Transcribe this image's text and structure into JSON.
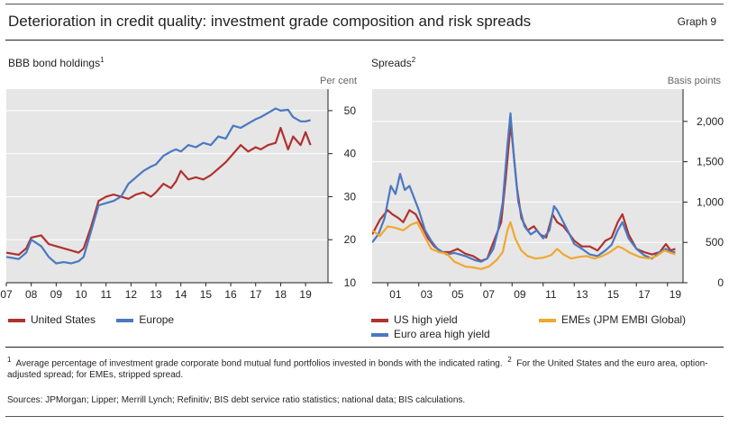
{
  "header": {
    "title": "Deterioration in credit quality: investment grade composition and risk spreads",
    "graph_label": "Graph 9"
  },
  "left_panel": {
    "title": "BBB bond holdings",
    "title_sup": "1",
    "unit": "Per cent",
    "legend": [
      {
        "label": "United States",
        "color": "#b0312e"
      },
      {
        "label": "Europe",
        "color": "#4a78c2"
      }
    ]
  },
  "right_panel": {
    "title": "Spreads",
    "title_sup": "2",
    "unit": "Basis points",
    "legend": [
      {
        "label": "US high yield",
        "color": "#b0312e"
      },
      {
        "label": "EMEs (JPM EMBI Global)",
        "color": "#f0a830"
      },
      {
        "label": "Euro area high yield",
        "color": "#4a78c2"
      }
    ]
  },
  "footnote": {
    "n1": "1",
    "text1": "Average percentage of investment grade corporate bond mutual fund portfolios invested in bonds with the indicated rating.",
    "n2": "2",
    "text2": "For the United States and the euro area, option-adjusted spread; for EMEs, stripped spread.",
    "sources": "Sources: JPMorgan; Lipper; Merrill Lynch; Refinitiv; BIS debt service ratio statistics; national data; BIS calculations."
  },
  "chart_data": [
    {
      "type": "line",
      "title": "BBB bond holdings",
      "ylabel": "Per cent",
      "ylim": [
        10,
        55
      ],
      "yticks": [
        10,
        20,
        30,
        40,
        50
      ],
      "xlim": [
        2007.0,
        2019.9
      ],
      "xticks": [
        "07",
        "08",
        "09",
        "10",
        "11",
        "12",
        "13",
        "14",
        "15",
        "16",
        "17",
        "18",
        "19"
      ],
      "grid": true,
      "legend_position": "bottom",
      "series": [
        {
          "name": "United States",
          "color": "#b0312e",
          "x": [
            2007.0,
            2007.5,
            2007.8,
            2008.0,
            2008.4,
            2008.7,
            2009.0,
            2009.3,
            2009.6,
            2009.9,
            2010.1,
            2010.4,
            2010.7,
            2011.0,
            2011.3,
            2011.6,
            2011.9,
            2012.2,
            2012.5,
            2012.8,
            2013.0,
            2013.3,
            2013.6,
            2013.8,
            2014.0,
            2014.3,
            2014.6,
            2014.9,
            2015.2,
            2015.5,
            2015.8,
            2016.1,
            2016.4,
            2016.7,
            2017.0,
            2017.2,
            2017.5,
            2017.8,
            2018.0,
            2018.3,
            2018.5,
            2018.8,
            2019.0,
            2019.2
          ],
          "y": [
            17,
            16.5,
            18,
            20.5,
            21,
            19,
            18.5,
            18,
            17.5,
            17,
            18,
            23,
            29,
            30,
            30.5,
            30,
            29.5,
            30.5,
            31,
            30,
            31,
            33,
            32,
            33.5,
            36,
            34,
            34.5,
            34,
            35,
            36.5,
            38,
            40,
            42,
            40.5,
            41.5,
            41,
            42,
            42.5,
            46,
            41,
            44,
            42,
            45,
            42
          ]
        },
        {
          "name": "Europe",
          "color": "#4a78c2",
          "x": [
            2007.0,
            2007.5,
            2007.8,
            2008.0,
            2008.4,
            2008.7,
            2009.0,
            2009.3,
            2009.6,
            2009.9,
            2010.1,
            2010.4,
            2010.7,
            2011.0,
            2011.3,
            2011.6,
            2011.9,
            2012.2,
            2012.5,
            2012.8,
            2013.0,
            2013.3,
            2013.6,
            2013.8,
            2014.0,
            2014.3,
            2014.6,
            2014.9,
            2015.2,
            2015.5,
            2015.8,
            2016.1,
            2016.4,
            2016.7,
            2017.0,
            2017.2,
            2017.5,
            2017.8,
            2018.0,
            2018.3,
            2018.5,
            2018.8,
            2019.0,
            2019.2
          ],
          "y": [
            16,
            15.5,
            17,
            20,
            18.5,
            16,
            14.5,
            14.8,
            14.5,
            15,
            16,
            22,
            28,
            28.5,
            29,
            30,
            33,
            34.5,
            36,
            37,
            37.5,
            39.5,
            40.5,
            41,
            40.5,
            42,
            41.5,
            42.5,
            42,
            44,
            43.5,
            46.5,
            46,
            47,
            48,
            48.5,
            49.5,
            50.5,
            50,
            50.2,
            48.5,
            47.5,
            47.5,
            47.8
          ]
        }
      ]
    },
    {
      "type": "line",
      "title": "Spreads",
      "ylabel": "Basis points",
      "ylim": [
        0,
        2400
      ],
      "yticks": [
        0,
        500,
        1000,
        1500,
        2000
      ],
      "xlim": [
        2000.0,
        2020.0
      ],
      "xticks": [
        "01",
        "03",
        "05",
        "07",
        "09",
        "11",
        "13",
        "15",
        "17",
        "19"
      ],
      "grid": true,
      "legend_position": "bottom",
      "series": [
        {
          "name": "US high yield",
          "color": "#b0312e",
          "x": [
            2000.0,
            2000.5,
            2001.0,
            2001.3,
            2001.7,
            2002.0,
            2002.4,
            2002.8,
            2003.2,
            2003.6,
            2004.0,
            2004.5,
            2005.0,
            2005.5,
            2006.0,
            2006.5,
            2007.0,
            2007.4,
            2007.7,
            2008.0,
            2008.3,
            2008.6,
            2008.9,
            2009.0,
            2009.3,
            2009.6,
            2010.0,
            2010.4,
            2010.8,
            2011.2,
            2011.6,
            2011.9,
            2012.3,
            2012.7,
            2013.0,
            2013.5,
            2014.0,
            2014.5,
            2015.0,
            2015.4,
            2015.8,
            2016.1,
            2016.5,
            2017.0,
            2017.5,
            2018.0,
            2018.5,
            2018.9,
            2019.2,
            2019.5
          ],
          "y": [
            600,
            780,
            900,
            850,
            800,
            750,
            900,
            850,
            700,
            550,
            450,
            380,
            380,
            420,
            360,
            330,
            270,
            300,
            450,
            600,
            750,
            1300,
            1950,
            1800,
            1200,
            800,
            650,
            700,
            600,
            560,
            850,
            750,
            700,
            600,
            520,
            450,
            450,
            400,
            520,
            560,
            750,
            850,
            600,
            420,
            380,
            350,
            380,
            480,
            400,
            420
          ]
        },
        {
          "name": "Euro area high yield",
          "color": "#4a78c2",
          "x": [
            2000.0,
            2000.4,
            2000.8,
            2001.2,
            2001.5,
            2001.8,
            2002.1,
            2002.4,
            2002.7,
            2003.0,
            2003.4,
            2003.8,
            2004.2,
            2004.8,
            2005.3,
            2006.0,
            2006.6,
            2007.0,
            2007.4,
            2007.8,
            2008.1,
            2008.4,
            2008.7,
            2008.9,
            2009.1,
            2009.4,
            2009.8,
            2010.2,
            2010.6,
            2011.0,
            2011.4,
            2011.7,
            2011.9,
            2012.3,
            2012.7,
            2013.0,
            2013.5,
            2014.0,
            2014.5,
            2015.0,
            2015.4,
            2015.8,
            2016.1,
            2016.5,
            2017.0,
            2017.5,
            2018.0,
            2018.5,
            2018.9,
            2019.2,
            2019.5
          ],
          "y": [
            500,
            600,
            800,
            1200,
            1100,
            1350,
            1150,
            1200,
            1050,
            900,
            650,
            520,
            420,
            350,
            370,
            330,
            280,
            260,
            300,
            420,
            650,
            1000,
            1700,
            2100,
            1600,
            1000,
            700,
            600,
            650,
            550,
            650,
            950,
            900,
            750,
            600,
            480,
            420,
            350,
            330,
            400,
            470,
            650,
            750,
            550,
            420,
            340,
            300,
            380,
            420,
            380,
            380
          ]
        },
        {
          "name": "EMEs (JPM EMBI Global)",
          "color": "#f0a830",
          "x": [
            2000.0,
            2000.5,
            2001.0,
            2001.5,
            2002.0,
            2002.5,
            2002.9,
            2003.3,
            2003.8,
            2004.3,
            2004.8,
            2005.3,
            2006.0,
            2006.5,
            2007.0,
            2007.5,
            2008.0,
            2008.4,
            2008.7,
            2008.9,
            2009.2,
            2009.6,
            2010.0,
            2010.5,
            2011.0,
            2011.5,
            2011.9,
            2012.3,
            2012.8,
            2013.3,
            2013.8,
            2014.3,
            2014.8,
            2015.3,
            2015.8,
            2016.1,
            2016.6,
            2017.2,
            2017.8,
            2018.3,
            2018.8,
            2019.2,
            2019.5
          ],
          "y": [
            650,
            580,
            700,
            680,
            650,
            720,
            750,
            600,
            420,
            380,
            360,
            260,
            200,
            190,
            170,
            200,
            280,
            380,
            650,
            750,
            550,
            400,
            330,
            300,
            310,
            340,
            420,
            350,
            300,
            320,
            330,
            300,
            330,
            380,
            450,
            430,
            370,
            320,
            300,
            330,
            400,
            370,
            350
          ]
        }
      ]
    }
  ]
}
